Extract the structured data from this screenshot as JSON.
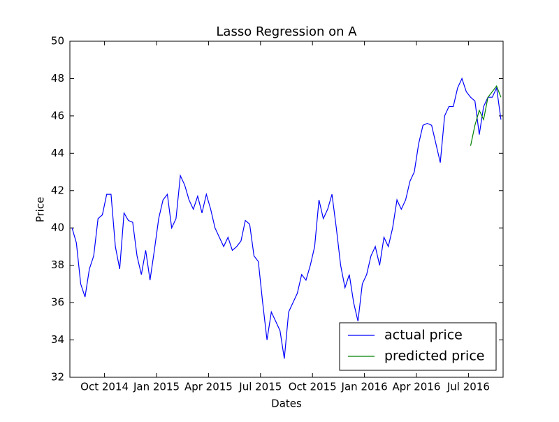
{
  "chart_data": {
    "type": "line",
    "title": "Lasso Regression on A",
    "xlabel": "Dates",
    "ylabel": "Price",
    "x": [
      "2014-08",
      "2014-08",
      "2014-08",
      "2014-08",
      "2014-09",
      "2014-09",
      "2014-09",
      "2014-09",
      "2014-10",
      "2014-10",
      "2014-10",
      "2014-10",
      "2014-11",
      "2014-11",
      "2014-11",
      "2014-11",
      "2014-12",
      "2014-12",
      "2014-12",
      "2014-12",
      "2015-01",
      "2015-01",
      "2015-01",
      "2015-01",
      "2015-02",
      "2015-02",
      "2015-02",
      "2015-02",
      "2015-03",
      "2015-03",
      "2015-03",
      "2015-03",
      "2015-04",
      "2015-04",
      "2015-04",
      "2015-04",
      "2015-05",
      "2015-05",
      "2015-05",
      "2015-05",
      "2015-06",
      "2015-06",
      "2015-06",
      "2015-06",
      "2015-07",
      "2015-07",
      "2015-07",
      "2015-07",
      "2015-08",
      "2015-08",
      "2015-08",
      "2015-08",
      "2015-09",
      "2015-09",
      "2015-09",
      "2015-09",
      "2015-10",
      "2015-10",
      "2015-10",
      "2015-10",
      "2015-11",
      "2015-11",
      "2015-11",
      "2015-11",
      "2015-12",
      "2015-12",
      "2015-12",
      "2015-12",
      "2016-01",
      "2016-01",
      "2016-01",
      "2016-01",
      "2016-02",
      "2016-02",
      "2016-02",
      "2016-02",
      "2016-03",
      "2016-03",
      "2016-03",
      "2016-03",
      "2016-04",
      "2016-04",
      "2016-04",
      "2016-04",
      "2016-05",
      "2016-05",
      "2016-05",
      "2016-05",
      "2016-06",
      "2016-06",
      "2016-06",
      "2016-06",
      "2016-07",
      "2016-07",
      "2016-07",
      "2016-07",
      "2016-08",
      "2016-08",
      "2016-08",
      "2016-08"
    ],
    "series": [
      {
        "name": "actual price",
        "color": "#0000ff",
        "values": [
          40.0,
          39.2,
          37.0,
          36.3,
          37.8,
          38.5,
          40.5,
          40.7,
          41.8,
          41.8,
          39.0,
          37.8,
          40.8,
          40.4,
          40.3,
          38.5,
          37.5,
          38.8,
          37.2,
          38.8,
          40.5,
          41.5,
          41.8,
          40.0,
          40.5,
          42.8,
          42.3,
          41.5,
          41.0,
          41.7,
          40.8,
          41.8,
          41.0,
          40.0,
          39.5,
          39.0,
          39.5,
          38.8,
          39.0,
          39.3,
          40.4,
          40.2,
          38.5,
          38.2,
          36.0,
          34.0,
          35.5,
          35.0,
          34.5,
          33.0,
          35.5,
          36.0,
          36.5,
          37.5,
          37.2,
          38.0,
          39.0,
          41.5,
          40.5,
          41.0,
          41.8,
          40.0,
          38.0,
          36.8,
          37.5,
          36.0,
          35.0,
          37.0,
          37.5,
          38.5,
          39.0,
          38.0,
          39.5,
          39.0,
          40.0,
          41.5,
          41.0,
          41.5,
          42.5,
          43.0,
          44.5,
          45.5,
          45.6,
          45.5,
          44.5,
          43.5,
          46.0,
          46.5,
          46.5,
          47.5,
          48.0,
          47.3,
          47.0,
          46.8,
          45.0,
          46.5,
          47.0,
          47.0,
          47.5,
          45.8
        ]
      },
      {
        "name": "predicted price",
        "color": "#008000",
        "values": [
          null,
          null,
          null,
          null,
          null,
          null,
          null,
          null,
          null,
          null,
          null,
          null,
          null,
          null,
          null,
          null,
          null,
          null,
          null,
          null,
          null,
          null,
          null,
          null,
          null,
          null,
          null,
          null,
          null,
          null,
          null,
          null,
          null,
          null,
          null,
          null,
          null,
          null,
          null,
          null,
          null,
          null,
          null,
          null,
          null,
          null,
          null,
          null,
          null,
          null,
          null,
          null,
          null,
          null,
          null,
          null,
          null,
          null,
          null,
          null,
          null,
          null,
          null,
          null,
          null,
          null,
          null,
          null,
          null,
          null,
          null,
          null,
          null,
          null,
          null,
          null,
          null,
          null,
          null,
          null,
          null,
          null,
          null,
          null,
          null,
          null,
          null,
          null,
          null,
          null,
          null,
          null,
          44.4,
          45.5,
          46.3,
          45.8,
          47.0,
          47.3,
          47.6,
          47.0
        ]
      }
    ],
    "xlim": [
      "2014-08",
      "2016-09"
    ],
    "xticks": [
      {
        "value": "2014-10",
        "label": "Oct 2014"
      },
      {
        "value": "2015-01",
        "label": "Jan 2015"
      },
      {
        "value": "2015-04",
        "label": "Apr 2015"
      },
      {
        "value": "2015-07",
        "label": "Jul 2015"
      },
      {
        "value": "2015-10",
        "label": "Oct 2015"
      },
      {
        "value": "2016-01",
        "label": "Jan 2016"
      },
      {
        "value": "2016-04",
        "label": "Apr 2016"
      },
      {
        "value": "2016-07",
        "label": "Jul 2016"
      }
    ],
    "ylim": [
      32,
      50
    ],
    "yticks": [
      32,
      34,
      36,
      38,
      40,
      42,
      44,
      46,
      48,
      50
    ],
    "legend": "lower right"
  }
}
